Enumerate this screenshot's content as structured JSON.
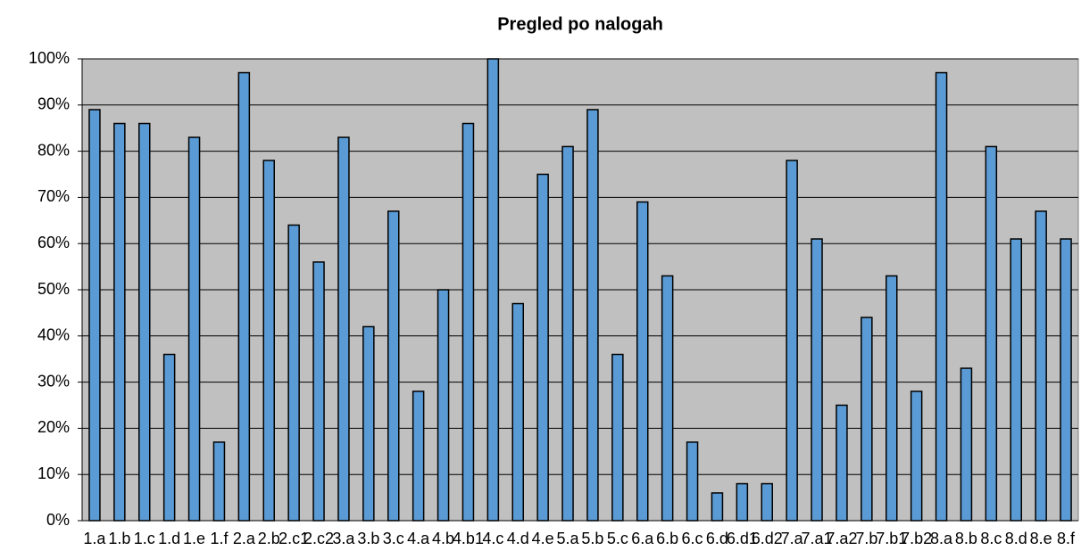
{
  "chart_data": {
    "type": "bar",
    "title": "Pregled po nalogah",
    "categories": [
      "1.a",
      "1.b",
      "1.c",
      "1.d",
      "1.e",
      "1.f",
      "2.a",
      "2.b",
      "2.c1",
      "2.c2",
      "3.a",
      "3.b",
      "3.c",
      "4.a",
      "4.b",
      "4.b1",
      "4.c",
      "4.d",
      "4.e",
      "5.a",
      "5.b",
      "5.c",
      "6.a",
      "6.b",
      "6.c",
      "6.d",
      "6.d1",
      "6.d2",
      "7.a",
      "7.a1",
      "7.a2",
      "7.b",
      "7.b1",
      "7.b2",
      "8.a",
      "8.b",
      "8.c",
      "8.d",
      "8.e",
      "8.f"
    ],
    "values": [
      89,
      86,
      86,
      36,
      83,
      17,
      97,
      78,
      64,
      56,
      83,
      42,
      67,
      28,
      50,
      86,
      100,
      47,
      75,
      81,
      89,
      36,
      69,
      53,
      17,
      6,
      8,
      8,
      78,
      61,
      25,
      44,
      53,
      28,
      97,
      33,
      81,
      61,
      67,
      61
    ],
    "color": "#5b9bd5",
    "ylim": [
      0,
      100
    ],
    "yticks": [
      {
        "value": 0,
        "label": "0%"
      },
      {
        "value": 10,
        "label": "10%"
      },
      {
        "value": 20,
        "label": "20%"
      },
      {
        "value": 30,
        "label": "30%"
      },
      {
        "value": 40,
        "label": "40%"
      },
      {
        "value": 50,
        "label": "50%"
      },
      {
        "value": 60,
        "label": "60%"
      },
      {
        "value": 70,
        "label": "70%"
      },
      {
        "value": 80,
        "label": "80%"
      },
      {
        "value": 90,
        "label": "90%"
      },
      {
        "value": 100,
        "label": "100%"
      }
    ],
    "grid": true
  }
}
